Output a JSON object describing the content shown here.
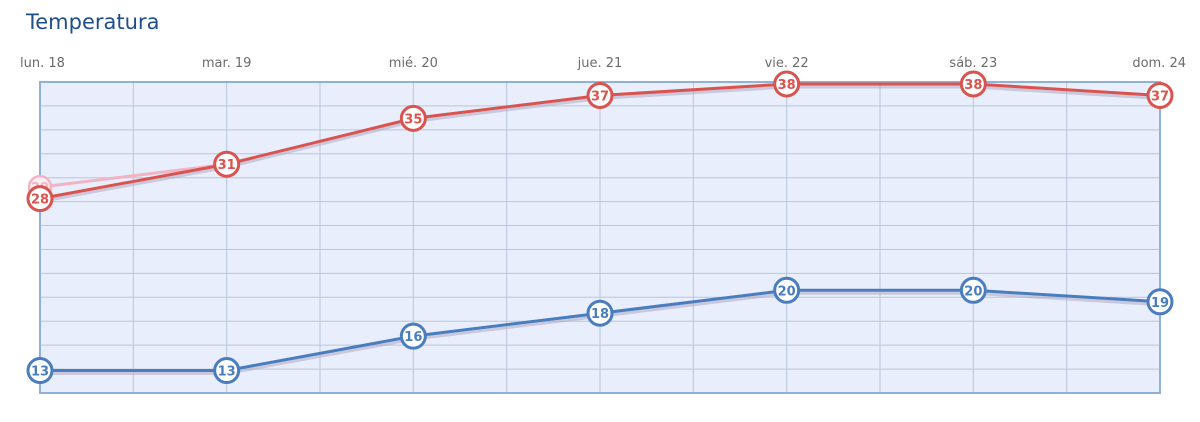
{
  "header": {
    "title": "Temperatura"
  },
  "colors": {
    "max": "#d9534f",
    "min": "#4a7dbd",
    "ghost": "#f2b3c4",
    "plot_bg": "#e8eefb",
    "grid": "#b9c6dc",
    "border": "#8fb0d8"
  },
  "chart_data": {
    "type": "line",
    "title": "Temperatura",
    "categories": [
      "lun. 18",
      "mar. 19",
      "mié. 20",
      "jue. 21",
      "vie. 22",
      "sáb. 23",
      "dom. 24"
    ],
    "series": [
      {
        "key": "max",
        "values": [
          28,
          31,
          35,
          37,
          38,
          38,
          37
        ]
      },
      {
        "key": "min",
        "values": [
          13,
          13,
          16,
          18,
          20,
          20,
          19
        ]
      }
    ],
    "ghost_point": {
      "category": "lun. 18",
      "value": 29
    },
    "ylim": [
      12,
      38
    ],
    "grid": true
  }
}
